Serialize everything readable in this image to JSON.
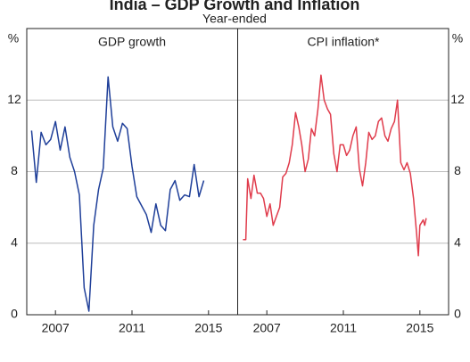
{
  "chart_data": {
    "type": "line",
    "title": "India – GDP Growth and Inflation",
    "subtitle": "Year-ended",
    "unit": "%",
    "ylim": [
      0,
      16
    ],
    "yticks": [
      0,
      4,
      8,
      12
    ],
    "xlim": [
      2005.5,
      2016.5
    ],
    "xticks": [
      2007,
      2011,
      2015
    ],
    "panels": [
      {
        "title": "GDP growth",
        "series": [
          {
            "color": "#1f3f99",
            "x": [
              2005.75,
              2006,
              2006.25,
              2006.5,
              2006.75,
              2007,
              2007.25,
              2007.5,
              2007.75,
              2008,
              2008.25,
              2008.5,
              2008.75,
              2009,
              2009.25,
              2009.5,
              2009.75,
              2010,
              2010.25,
              2010.5,
              2010.75,
              2011,
              2011.25,
              2011.5,
              2011.75,
              2012,
              2012.25,
              2012.5,
              2012.75,
              2013,
              2013.25,
              2013.5,
              2013.75,
              2014,
              2014.25,
              2014.5,
              2014.75
            ],
            "values": [
              10.3,
              7.4,
              10.2,
              9.5,
              9.8,
              10.8,
              9.2,
              10.5,
              8.8,
              8.0,
              6.7,
              1.5,
              0.2,
              5.0,
              7.0,
              8.2,
              13.3,
              10.5,
              9.7,
              10.7,
              10.4,
              8.3,
              6.6,
              6.1,
              5.6,
              4.6,
              6.2,
              5.0,
              4.7,
              7.0,
              7.5,
              6.4,
              6.7,
              6.6,
              8.4,
              6.6,
              7.5
            ]
          }
        ]
      },
      {
        "title": "CPI inflation*",
        "series": [
          {
            "color": "#e03c4c",
            "x": [
              2005.75,
              2005.9,
              2006,
              2006.17,
              2006.33,
              2006.5,
              2006.67,
              2006.83,
              2007,
              2007.17,
              2007.33,
              2007.5,
              2007.67,
              2007.83,
              2008,
              2008.17,
              2008.33,
              2008.5,
              2008.67,
              2008.83,
              2009,
              2009.17,
              2009.33,
              2009.5,
              2009.67,
              2009.83,
              2010,
              2010.17,
              2010.33,
              2010.5,
              2010.67,
              2010.83,
              2011,
              2011.17,
              2011.33,
              2011.5,
              2011.67,
              2011.83,
              2012,
              2012.17,
              2012.33,
              2012.5,
              2012.67,
              2012.83,
              2013,
              2013.17,
              2013.33,
              2013.5,
              2013.67,
              2013.83,
              2014,
              2014.17,
              2014.33,
              2014.5,
              2014.67,
              2014.83,
              2014.92,
              2015,
              2015.17,
              2015.25,
              2015.33
            ],
            "values": [
              4.2,
              4.2,
              7.6,
              6.5,
              7.8,
              6.8,
              6.8,
              6.5,
              5.5,
              6.2,
              5.0,
              5.5,
              6.0,
              7.7,
              7.9,
              8.5,
              9.5,
              11.3,
              10.5,
              9.5,
              8.0,
              8.7,
              10.4,
              10.0,
              11.5,
              13.4,
              12.0,
              11.5,
              11.2,
              9.0,
              8.0,
              9.5,
              9.5,
              8.9,
              9.2,
              10.0,
              10.5,
              8.2,
              7.2,
              8.5,
              10.2,
              9.8,
              10.0,
              10.8,
              11.0,
              10.0,
              9.7,
              10.4,
              10.8,
              12.0,
              8.5,
              8.1,
              8.5,
              7.9,
              6.5,
              4.5,
              3.3,
              5.0,
              5.3,
              5.0,
              5.4
            ]
          }
        ]
      }
    ]
  }
}
